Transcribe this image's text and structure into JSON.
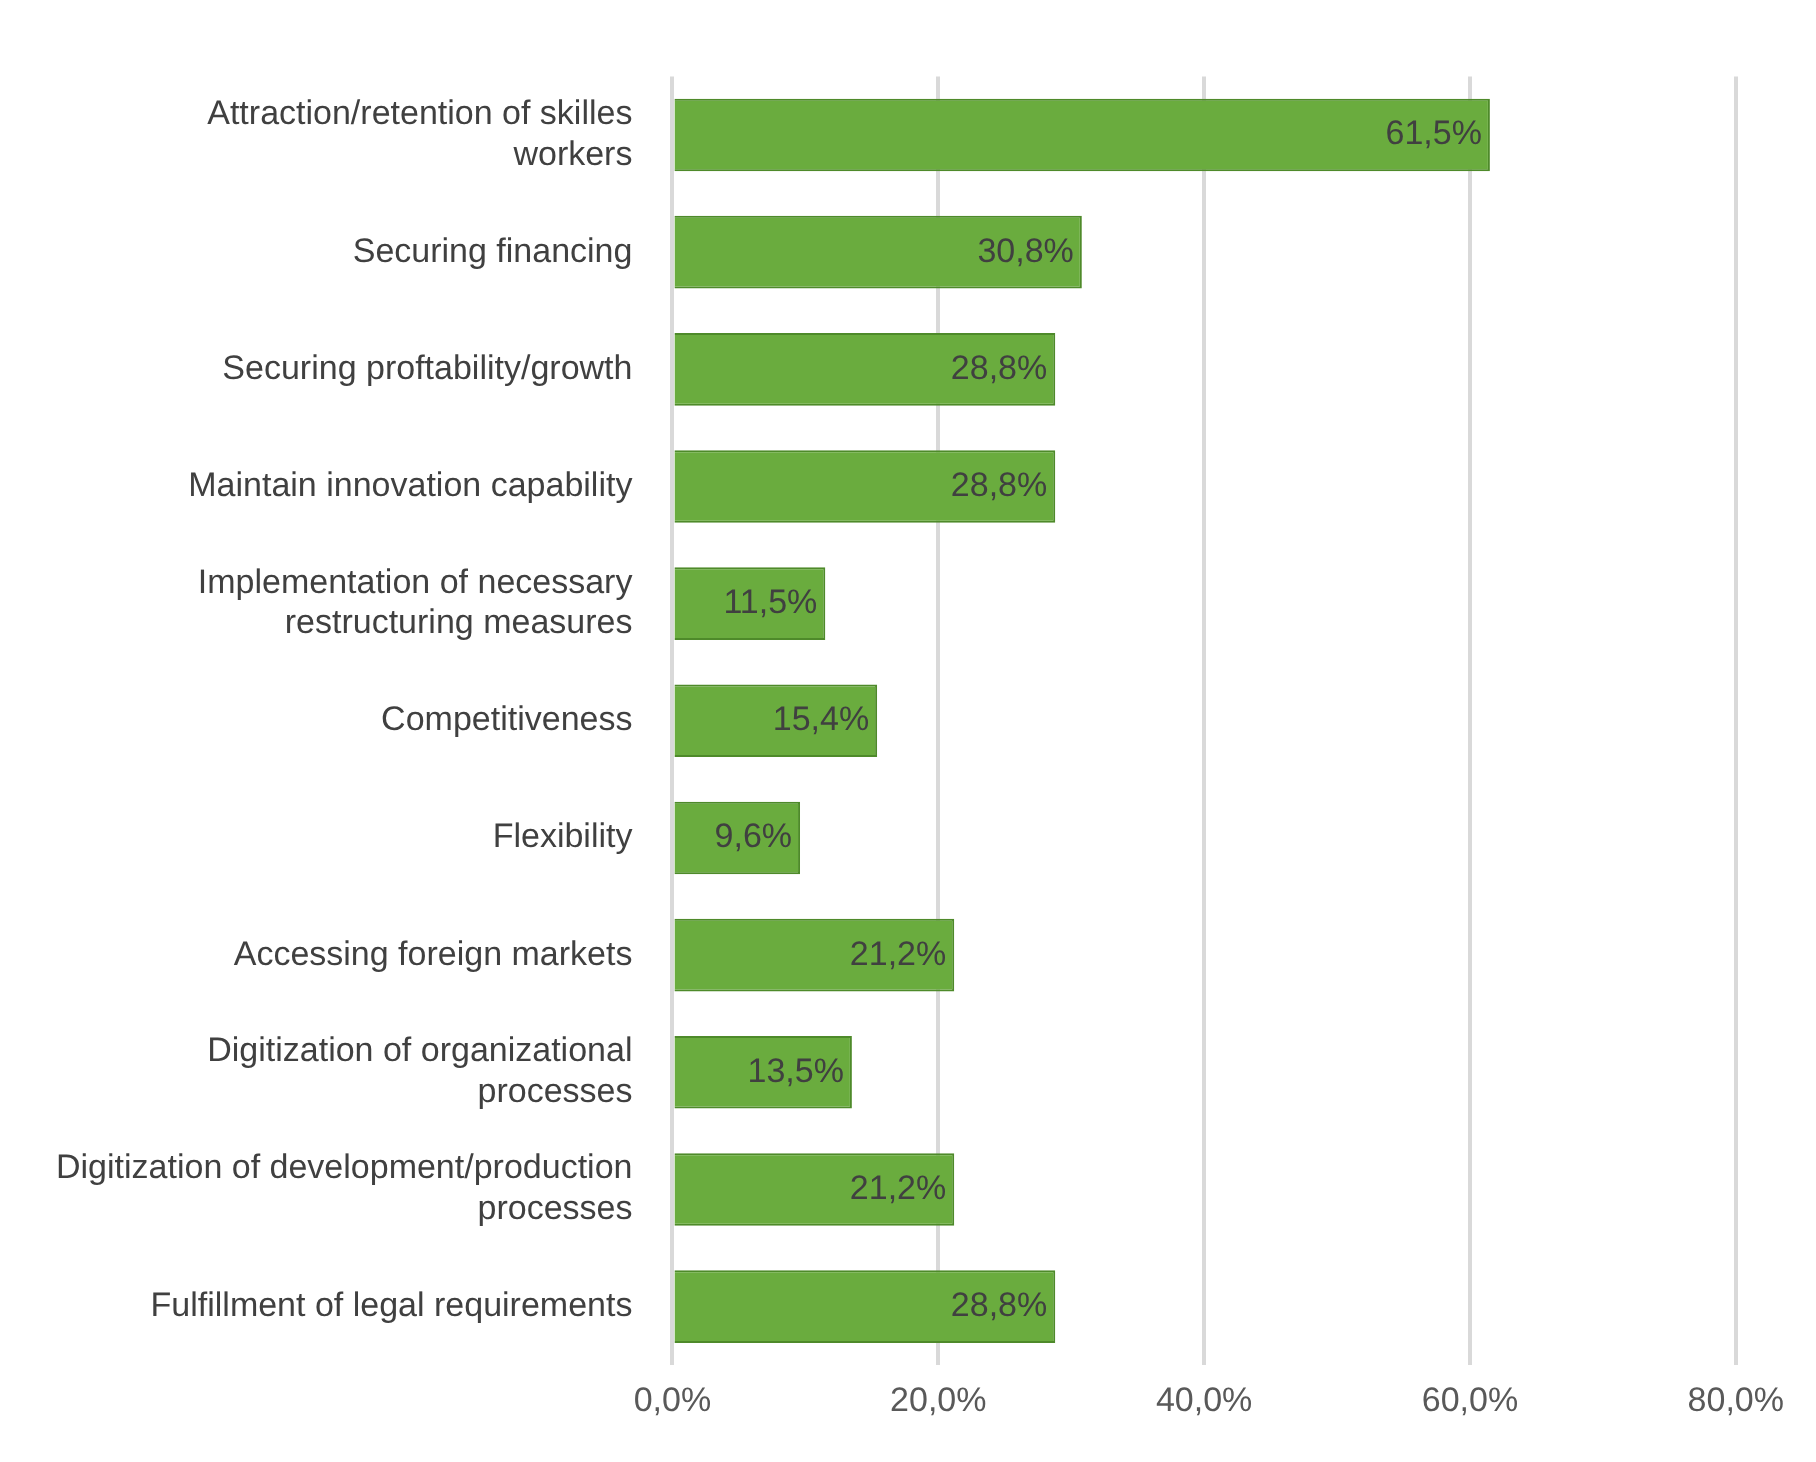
{
  "chart_data": {
    "type": "bar",
    "orientation": "horizontal",
    "categories": [
      "Attraction/retention of skilles workers",
      "Securing financing",
      "Securing proftability/growth",
      "Maintain innovation capability",
      "Implementation of necessary restructuring measures",
      "Competitiveness",
      "Flexibility",
      "Accessing foreign markets",
      "Digitization of organizational processes",
      "Digitization of development/production processes",
      "Fulfillment of legal requirements"
    ],
    "values": [
      61.5,
      30.8,
      28.8,
      28.8,
      11.5,
      15.4,
      9.6,
      21.2,
      13.5,
      21.2,
      28.8
    ],
    "value_labels": [
      "61,5%",
      "30,8%",
      "28,8%",
      "28,8%",
      "11,5%",
      "15,4%",
      "9,6%",
      "21,2%",
      "13,5%",
      "21,2%",
      "28,8%"
    ],
    "color": "#6aac3e",
    "xlim": [
      0,
      80
    ],
    "xticks": [
      {
        "value": 0,
        "label": "0,0%"
      },
      {
        "value": 20,
        "label": "20,0%"
      },
      {
        "value": 40,
        "label": "40,0%"
      },
      {
        "value": 60,
        "label": "60,0%"
      },
      {
        "value": 80,
        "label": "80,0%"
      }
    ],
    "grid": "x"
  }
}
